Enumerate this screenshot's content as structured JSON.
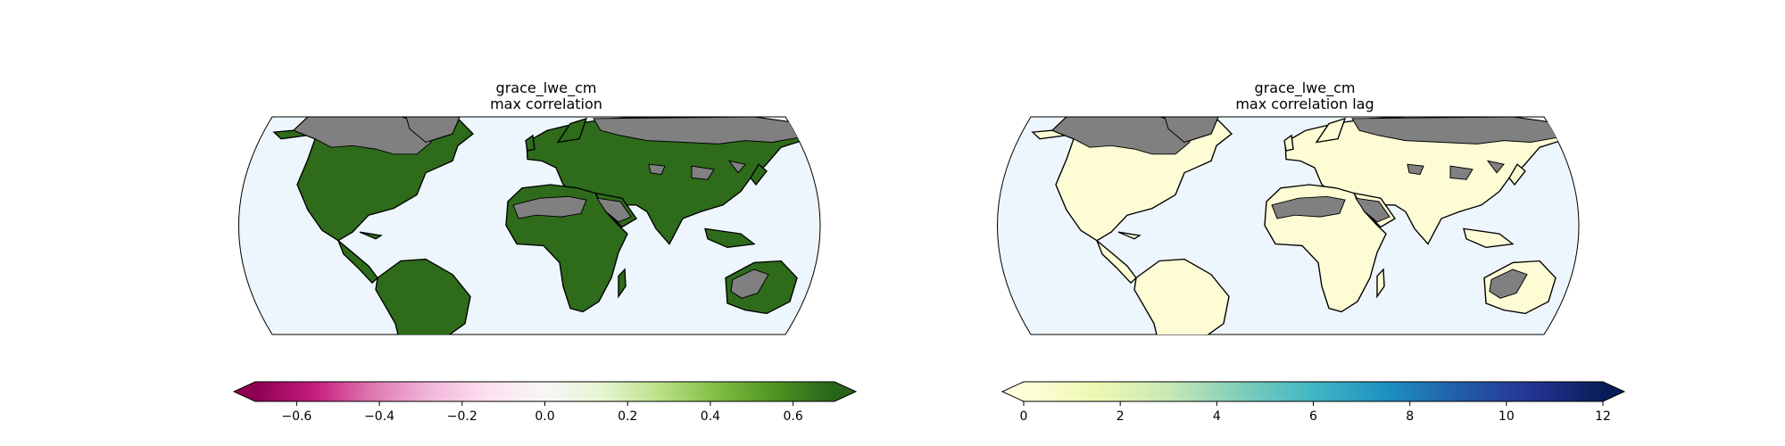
{
  "maps": [
    {
      "title_line1": "grace_lwe_cm",
      "title_line2": "max correlation",
      "ocean_color": "#eef6fd",
      "fill_color": "#2e6b1a",
      "masked_color": "#808080"
    },
    {
      "title_line1": "grace_lwe_cm",
      "title_line2": "max correlation lag",
      "ocean_color": "#eef6fd",
      "fill_color": "#fefcd4",
      "masked_color": "#808080"
    }
  ],
  "colorbars": [
    {
      "name": "correlation",
      "colormap": "PiYG",
      "vmin": -0.7,
      "vmax": 0.7,
      "stops": [
        "#8e0152",
        "#c51b7d",
        "#de77ae",
        "#f1b6da",
        "#fde0ef",
        "#f7f7f7",
        "#e6f5d0",
        "#b8e186",
        "#7fbc41",
        "#4d9221",
        "#276419"
      ],
      "ticks": [
        -0.6,
        -0.4,
        -0.2,
        0.0,
        0.2,
        0.4,
        0.6
      ],
      "tick_labels": [
        "−0.6",
        "−0.4",
        "−0.2",
        "0.0",
        "0.2",
        "0.4",
        "0.6"
      ],
      "extend": "both"
    },
    {
      "name": "lag",
      "colormap": "YlGnBu",
      "vmin": 0,
      "vmax": 12,
      "stops": [
        "#ffffd9",
        "#edf8b1",
        "#c7e9b4",
        "#7fcdbb",
        "#41b6c4",
        "#1d91c0",
        "#225ea8",
        "#253494",
        "#081d58"
      ],
      "ticks": [
        0,
        2,
        4,
        6,
        8,
        10,
        12
      ],
      "tick_labels": [
        "0",
        "2",
        "4",
        "6",
        "8",
        "10",
        "12"
      ],
      "extend": "both"
    }
  ]
}
